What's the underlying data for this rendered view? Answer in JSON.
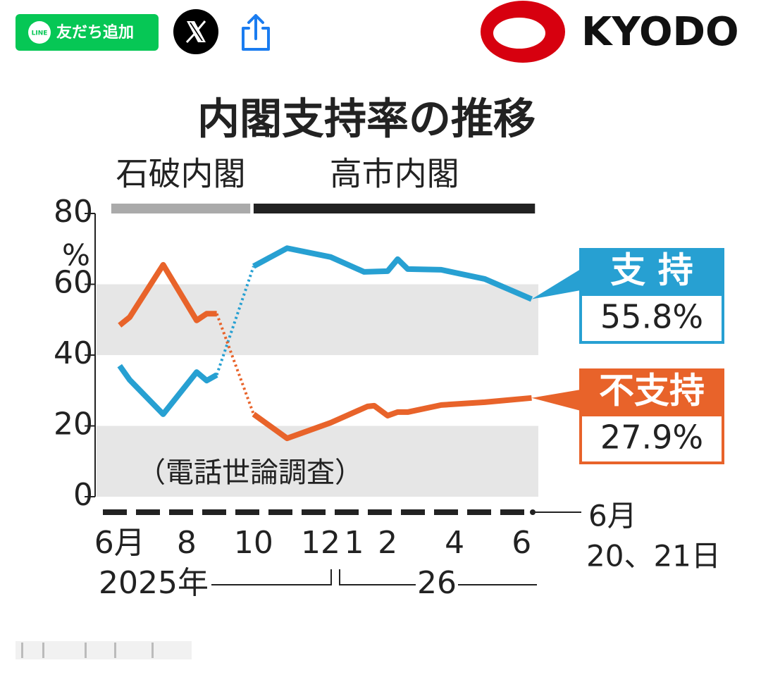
{
  "header": {
    "line_button": {
      "icon": "LINE",
      "label": "友だち追加"
    },
    "brand": "KYODO"
  },
  "chart_data": {
    "type": "line",
    "title": "内閣支持率の推移",
    "cabinets": [
      {
        "name": "石破内閣",
        "start": -0.25,
        "end": 3.9,
        "color": "#aaaaaa"
      },
      {
        "name": "高市内閣",
        "start": 4.0,
        "end": 12.4,
        "color": "#222222"
      }
    ],
    "y_unit": "%",
    "note": "（電話世論調査）",
    "ylim": [
      0,
      80
    ],
    "yticks": [
      0,
      20,
      40,
      60,
      80
    ],
    "bands": true,
    "xlim": [
      -0.5,
      12.5
    ],
    "xticks": [
      {
        "value": 0,
        "label": "6月"
      },
      {
        "value": 2,
        "label": "8"
      },
      {
        "value": 4,
        "label": "10"
      },
      {
        "value": 6,
        "label": "12"
      },
      {
        "value": 7,
        "label": "1"
      },
      {
        "value": 8,
        "label": "2"
      },
      {
        "value": 10,
        "label": "4"
      },
      {
        "value": 12,
        "label": "6"
      }
    ],
    "year_labels": [
      "2025年",
      "26"
    ],
    "survey_date": {
      "month": "6月",
      "days": "20、21日"
    },
    "series": [
      {
        "name": "支 持",
        "color": "#27a0d2",
        "x": [
          0,
          0.3,
          1.3,
          2.3,
          2.6,
          2.9,
          4.0,
          5.0,
          6.3,
          7.3,
          8.0,
          8.3,
          8.6,
          9.6,
          10.9,
          12.3
        ],
        "values": [
          37,
          33,
          23.3,
          35.2,
          32.8,
          34.4,
          65.1,
          70.2,
          67.7,
          63.5,
          63.7,
          67.1,
          64.3,
          64.1,
          61.5,
          55.8
        ],
        "end_label": "55.8%"
      },
      {
        "name": "不支持",
        "color": "#e8632a",
        "x": [
          0,
          0.3,
          1.3,
          2.3,
          2.6,
          2.9,
          4.0,
          5.0,
          6.3,
          7.4,
          7.6,
          8.0,
          8.3,
          8.6,
          9.6,
          10.9,
          12.3
        ],
        "values": [
          48.4,
          50.7,
          65.5,
          49.8,
          51.7,
          51.7,
          23.3,
          16.5,
          20.9,
          25.5,
          25.7,
          22.9,
          23.9,
          23.9,
          25.9,
          26.7,
          27.9
        ],
        "end_label": "27.9%"
      }
    ]
  }
}
